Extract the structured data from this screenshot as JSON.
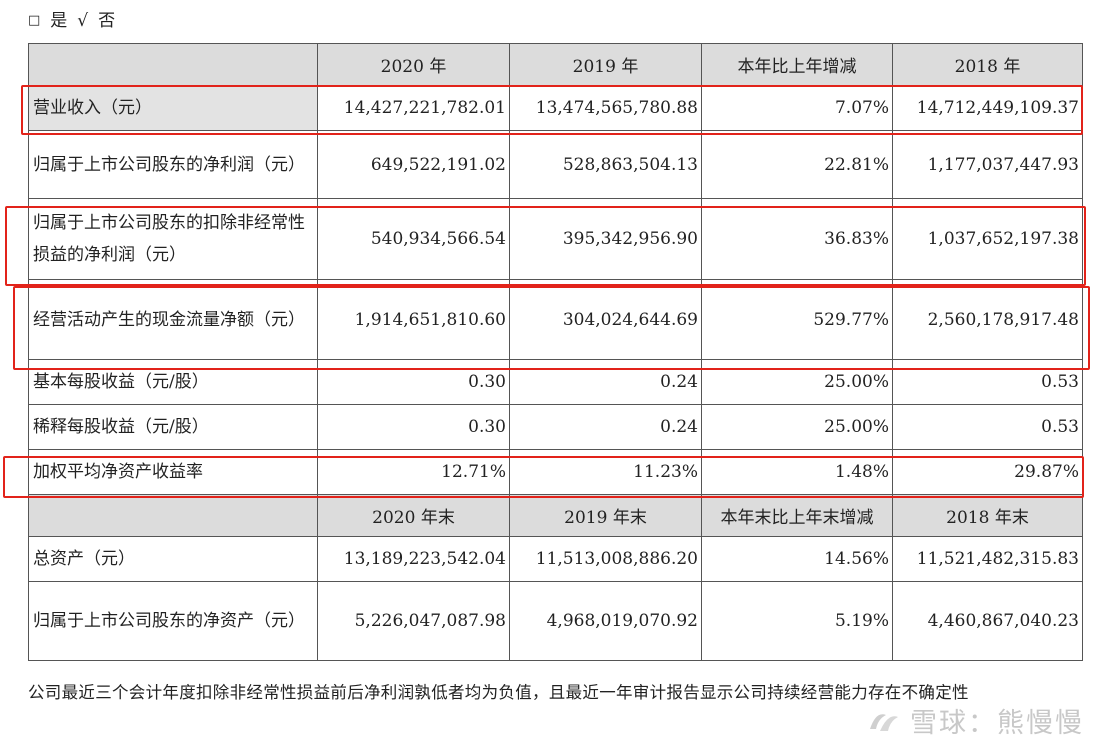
{
  "top": {
    "box": "□",
    "yes": "是",
    "check": "√",
    "no": "否"
  },
  "table1": {
    "headers": [
      "2020 年",
      "2019 年",
      "本年比上年增减",
      "2018 年"
    ],
    "rows": [
      {
        "label": "营业收入（元）",
        "v2020": "14,427,221,782.01",
        "v2019": "13,474,565,780.88",
        "change": "7.07%",
        "v2018": "14,712,449,109.37"
      },
      {
        "label": "归属于上市公司股东的净利润（元）",
        "v2020": "649,522,191.02",
        "v2019": "528,863,504.13",
        "change": "22.81%",
        "v2018": "1,177,037,447.93"
      },
      {
        "label": "归属于上市公司股东的扣除非经常性损益的净利润（元）",
        "v2020": "540,934,566.54",
        "v2019": "395,342,956.90",
        "change": "36.83%",
        "v2018": "1,037,652,197.38"
      },
      {
        "label": "经营活动产生的现金流量净额（元）",
        "v2020": "1,914,651,810.60",
        "v2019": "304,024,644.69",
        "change": "529.77%",
        "v2018": "2,560,178,917.48"
      },
      {
        "label": "基本每股收益（元/股）",
        "v2020": "0.30",
        "v2019": "0.24",
        "change": "25.00%",
        "v2018": "0.53"
      },
      {
        "label": "稀释每股收益（元/股）",
        "v2020": "0.30",
        "v2019": "0.24",
        "change": "25.00%",
        "v2018": "0.53"
      },
      {
        "label": "加权平均净资产收益率",
        "v2020": "12.71%",
        "v2019": "11.23%",
        "change": "1.48%",
        "v2018": "29.87%"
      }
    ]
  },
  "table2": {
    "headers": [
      "2020 年末",
      "2019 年末",
      "本年末比上年末增减",
      "2018 年末"
    ],
    "rows": [
      {
        "label": "总资产（元）",
        "v2020": "13,189,223,542.04",
        "v2019": "11,513,008,886.20",
        "change": "14.56%",
        "v2018": "11,521,482,315.83"
      },
      {
        "label": "归属于上市公司股东的净资产（元）",
        "v2020": "5,226,047,087.98",
        "v2019": "4,968,019,070.92",
        "change": "5.19%",
        "v2018": "4,460,867,040.23"
      }
    ]
  },
  "note": "公司最近三个会计年度扣除非经常性损益前后净利润孰低者均为负值，且最近一年审计报告显示公司持续经营能力存在不确定性",
  "watermark": {
    "text": "雪球：熊慢慢",
    "icon": "snowball-logo-icon"
  },
  "colors": {
    "highlight_border": "#e2231a",
    "header_bg": "#dcdcdc",
    "label_bg": "#e3e3e3"
  }
}
